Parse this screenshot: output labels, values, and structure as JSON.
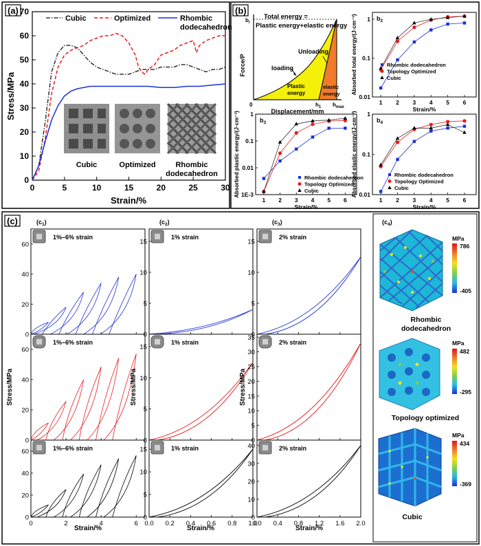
{
  "panels": {
    "a": "(a)",
    "b": "(b)",
    "c": "(c)",
    "b2": "b",
    "b3": "b",
    "b4": "b",
    "b2s": "2",
    "b3s": "3",
    "b4s": "4",
    "c1": "(c",
    "c2": "(c",
    "c3": "(c",
    "c4": "(c",
    "c1s": "1",
    "c2s": "2",
    "c3s": "3",
    "c4s": "4",
    ")": ")"
  },
  "colors": {
    "cubic": "#333333",
    "optimized": "#e8191b",
    "rhombic": "#1a2fd6",
    "fill_yellow": "#f4f00a",
    "fill_orange": "#f07b2a"
  },
  "a": {
    "ylabel": "Stress/MPa",
    "xlabel": "Strain/%",
    "xticks": [
      "0",
      "5",
      "10",
      "15",
      "20",
      "25",
      "30"
    ],
    "yticks": [
      "0",
      "10",
      "20",
      "30",
      "40",
      "50",
      "60",
      "70"
    ],
    "legend": {
      "cubic": "Cubic",
      "optimized": "Optimized",
      "rhombic1": "Rhombic",
      "rhombic2": "dodecahedron"
    },
    "photo_labels": {
      "cubic": "Cubic",
      "optimized": "Optimized",
      "rhombic1": "Rhombic",
      "rhombic2": "dodecahedron"
    }
  },
  "b1": {
    "title1": "Total energy =",
    "title2": "Plastic energy+elastic energy",
    "ylabel": "Force/P",
    "xlabel": "Displacement/mm",
    "zero": "0",
    "bi": "b",
    "bi_sub": "i",
    "h1": "h",
    "h1_sub": "1",
    "hmax": "h",
    "hmax_sub": "max",
    "unloading": "Unloading",
    "loading": "loading",
    "plastic1": "Plastic",
    "plastic2": "energy",
    "elastic1": "elastic",
    "elastic2": "energy"
  },
  "b_common": {
    "xticks": [
      "1",
      "2",
      "3",
      "4",
      "5",
      "6"
    ],
    "xlabel": "Strain/%",
    "legend": {
      "rhombic": "Rhombic dodecahedron",
      "optimized": "Topology Optimized",
      "cubic": "Cubic"
    }
  },
  "b2": {
    "ylabel": "Absorbed total energy/(J·cm⁻³)",
    "yticks": [
      "0.01",
      "0.1",
      "1"
    ]
  },
  "b3": {
    "ylabel": "Absorbed plastic energy/(J·cm⁻³)",
    "yticks": [
      "1E-3",
      "0.01",
      "0.1",
      "1"
    ]
  },
  "b4": {
    "ylabel": "Absorbed elastic energy/(J·cm⁻³)",
    "yticks": [
      "0.01",
      "0.1",
      "1"
    ]
  },
  "c": {
    "ylabel": "Stress/MPa",
    "xlabel": "Strain/%",
    "col1": {
      "label": "1%–6% strain",
      "yticks": [
        "0",
        "20",
        "40",
        "60"
      ],
      "xticks": [
        "0",
        "2",
        "4",
        "6"
      ]
    },
    "col2": {
      "label": "1% strain",
      "yticks": [
        "0",
        "5",
        "10",
        "15"
      ],
      "xticks": [
        "0.0",
        "0.2",
        "0.4",
        "0.6",
        "0.8",
        "1.0"
      ]
    },
    "col3": {
      "label": "2% strain",
      "yticks_top": [
        "0",
        "5",
        "10",
        "15"
      ],
      "yticks_mid": [
        "0",
        "5",
        "10",
        "15",
        "20",
        "25",
        "30",
        "35"
      ],
      "yticks_bot": [
        "0",
        "10",
        "20",
        "30",
        "40"
      ],
      "xticks": [
        "0.0",
        "0.4",
        "0.8",
        "1.2",
        "1.6",
        "2.0"
      ]
    }
  },
  "c4": {
    "mpa": "MPa",
    "rh_max": "786",
    "rh_min": "-405",
    "rh_name1": "Rhombic",
    "rh_name2": "dodecahedron",
    "to_max": "482",
    "to_min": "-295",
    "to_name": "Topology optimized",
    "cu_max": "434",
    "cu_min": "-369",
    "cu_name": "Cubic"
  },
  "chart_data": [
    {
      "type": "line",
      "id": "a",
      "title": "",
      "xlabel": "Strain/%",
      "ylabel": "Stress/MPa",
      "xlim": [
        0,
        30
      ],
      "ylim": [
        0,
        70
      ],
      "series": [
        {
          "name": "Cubic",
          "style": "dash-dot",
          "x": [
            0,
            1,
            2,
            3,
            4,
            5,
            6,
            7,
            8,
            9,
            10,
            11,
            12,
            13,
            14,
            15,
            16,
            17,
            18,
            19,
            20,
            21,
            22,
            23,
            24,
            25,
            26,
            27,
            28,
            29,
            30
          ],
          "y": [
            0,
            6,
            24,
            45,
            53,
            56,
            56,
            55,
            52,
            49,
            47,
            46,
            45,
            44,
            44,
            44,
            45,
            46,
            46,
            46,
            47,
            47,
            47,
            48,
            48,
            47,
            46,
            45,
            46,
            46,
            47
          ]
        },
        {
          "name": "Optimized",
          "style": "dash",
          "x": [
            0,
            1,
            2,
            3,
            4,
            5,
            6,
            7,
            8,
            9,
            10,
            11,
            12,
            13,
            14,
            15,
            16,
            16.5,
            17,
            17.5,
            18,
            19,
            20,
            21,
            22,
            23,
            24,
            25,
            25.5,
            26,
            27,
            28,
            29,
            30
          ],
          "y": [
            0,
            4,
            17,
            36,
            47,
            52,
            54,
            55,
            56,
            58,
            59,
            60,
            60,
            61,
            60,
            57,
            52,
            47,
            45,
            44,
            46,
            48,
            52,
            53,
            54,
            56,
            57,
            58,
            53,
            56,
            58,
            59,
            60,
            60
          ]
        },
        {
          "name": "Rhombic dodecahedron",
          "style": "solid",
          "x": [
            0,
            1,
            2,
            3,
            4,
            5,
            6,
            7,
            8,
            9,
            10,
            11,
            12,
            14,
            16,
            18,
            20,
            22,
            24,
            26,
            28,
            30
          ],
          "y": [
            0,
            6,
            16,
            25,
            31,
            35,
            37,
            38,
            38.5,
            39,
            39,
            39,
            39,
            39,
            39,
            39,
            38.5,
            38.5,
            39,
            39,
            39.5,
            40
          ]
        }
      ]
    },
    {
      "type": "line",
      "id": "b1",
      "title": "Total energy = Plastic energy+elastic energy",
      "xlabel": "Displacement/mm",
      "ylabel": "Force/P"
    },
    {
      "type": "scatter-line",
      "id": "b2",
      "yscale": "log",
      "ylim": [
        0.01,
        1.5
      ],
      "xlabel": "Strain/%",
      "ylabel": "Absorbed total energy/(J·cm⁻³)",
      "categories": [
        1,
        2,
        3,
        4,
        5,
        6
      ],
      "series": [
        {
          "name": "Rhombic dodecahedron",
          "values": [
            0.017,
            0.09,
            0.26,
            0.53,
            0.75,
            0.8
          ]
        },
        {
          "name": "Topology Optimized",
          "values": [
            0.05,
            0.27,
            0.62,
            0.95,
            1.15,
            1.2
          ]
        },
        {
          "name": "Cubic",
          "values": [
            0.055,
            0.33,
            0.8,
            1.0,
            1.1,
            1.2
          ]
        }
      ]
    },
    {
      "type": "scatter-line",
      "id": "b3",
      "yscale": "log",
      "ylim": [
        0.001,
        1
      ],
      "xlabel": "Strain/%",
      "ylabel": "Absorbed plastic energy/(J·cm⁻³)",
      "categories": [
        1,
        2,
        3,
        4,
        5,
        6
      ],
      "series": [
        {
          "name": "Rhombic dodecahedron",
          "values": [
            0.004,
            0.018,
            0.05,
            0.14,
            0.3,
            0.3
          ]
        },
        {
          "name": "Topology Optimized",
          "values": [
            0.0013,
            0.035,
            0.2,
            0.42,
            0.55,
            0.58
          ]
        },
        {
          "name": "Cubic",
          "values": [
            0.0013,
            0.09,
            0.43,
            0.56,
            0.6,
            0.7
          ]
        }
      ]
    },
    {
      "type": "scatter-line",
      "id": "b4",
      "yscale": "log",
      "ylim": [
        0.01,
        1
      ],
      "xlabel": "Strain/%",
      "ylabel": "Absorbed elastic energy/(J·cm⁻³)",
      "categories": [
        1,
        2,
        3,
        4,
        5,
        6
      ],
      "series": [
        {
          "name": "Rhombic dodecahedron",
          "values": [
            0.012,
            0.075,
            0.21,
            0.38,
            0.45,
            0.5
          ]
        },
        {
          "name": "Topology Optimized",
          "values": [
            0.05,
            0.2,
            0.42,
            0.55,
            0.65,
            0.68
          ]
        },
        {
          "name": "Cubic",
          "values": [
            0.055,
            0.25,
            0.45,
            0.45,
            0.55,
            0.35
          ]
        }
      ]
    },
    {
      "type": "line",
      "id": "c_grid",
      "rows": [
        "Rhombic dodecahedron",
        "Topology optimized",
        "Cubic"
      ],
      "cols": [
        {
          "label": "1%–6% strain",
          "xlim": [
            0,
            6.5
          ],
          "ylim": [
            0,
            70
          ]
        },
        {
          "label": "1% strain",
          "xlim": [
            0,
            1
          ],
          "ylim": [
            0,
            17
          ]
        },
        {
          "label": "2% strain",
          "xlim": [
            0,
            2
          ],
          "ylim": "varies"
        }
      ],
      "peak_stress": [
        [
          40,
          4,
          12.5
        ],
        [
          57,
          12.5,
          33
        ],
        [
          56,
          15,
          40
        ]
      ]
    }
  ]
}
